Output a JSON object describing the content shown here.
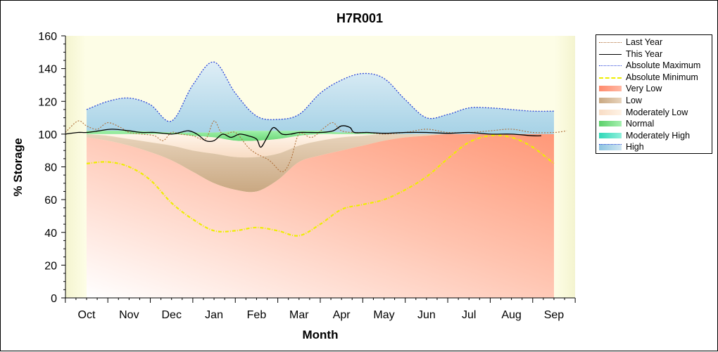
{
  "chart_data": {
    "type": "area",
    "title": "H7R001",
    "xlabel": "Month",
    "ylabel": "% Storage",
    "ylim": [
      0,
      160
    ],
    "yticks": [
      0,
      20,
      40,
      60,
      80,
      100,
      120,
      140,
      160
    ],
    "categories": [
      "Oct",
      "Nov",
      "Dec",
      "Jan",
      "Feb",
      "Mar",
      "Apr",
      "May",
      "Jun",
      "Jul",
      "Aug",
      "Sep"
    ],
    "legend_position": "right",
    "series": [
      {
        "name": "Last Year",
        "style": "dotted",
        "color": "#b0703a",
        "values": [
          [
            -0.5,
            101
          ],
          [
            -0.2,
            108
          ],
          [
            0,
            105
          ],
          [
            0.25,
            103
          ],
          [
            0.5,
            107
          ],
          [
            0.8,
            104
          ],
          [
            1,
            101
          ],
          [
            1.3,
            100
          ],
          [
            1.6,
            99
          ],
          [
            1.8,
            96
          ],
          [
            2,
            101
          ],
          [
            2.2,
            100
          ],
          [
            2.5,
            99
          ],
          [
            2.8,
            97
          ],
          [
            3,
            108
          ],
          [
            3.2,
            100
          ],
          [
            3.5,
            101
          ],
          [
            3.8,
            92
          ],
          [
            4,
            88
          ],
          [
            4.3,
            84
          ],
          [
            4.6,
            77
          ],
          [
            4.8,
            84
          ],
          [
            5,
            100
          ],
          [
            5.3,
            98
          ],
          [
            5.6,
            104
          ],
          [
            5.8,
            107
          ],
          [
            6,
            102
          ],
          [
            6.3,
            101
          ],
          [
            6.6,
            101
          ],
          [
            7,
            100
          ],
          [
            7.5,
            101
          ],
          [
            8,
            103
          ],
          [
            8.5,
            101
          ],
          [
            9,
            101
          ],
          [
            9.5,
            102
          ],
          [
            10,
            103
          ],
          [
            10.5,
            101
          ],
          [
            11,
            101
          ],
          [
            11.3,
            102
          ]
        ]
      },
      {
        "name": "This Year",
        "style": "solid",
        "color": "#000000",
        "values": [
          [
            -0.5,
            100
          ],
          [
            -0.2,
            101
          ],
          [
            0,
            101
          ],
          [
            0.3,
            102
          ],
          [
            0.6,
            103
          ],
          [
            1,
            102
          ],
          [
            1.3,
            101
          ],
          [
            1.6,
            101
          ],
          [
            2,
            100
          ],
          [
            2.2,
            101
          ],
          [
            2.4,
            102
          ],
          [
            2.6,
            100
          ],
          [
            2.8,
            96
          ],
          [
            3,
            96
          ],
          [
            3.2,
            100
          ],
          [
            3.4,
            98
          ],
          [
            3.6,
            100
          ],
          [
            3.8,
            99
          ],
          [
            4,
            97
          ],
          [
            4.1,
            92
          ],
          [
            4.25,
            98
          ],
          [
            4.4,
            104
          ],
          [
            4.6,
            100
          ],
          [
            4.8,
            100
          ],
          [
            5,
            101
          ],
          [
            5.2,
            101
          ],
          [
            5.5,
            101
          ],
          [
            5.8,
            102
          ],
          [
            6,
            105
          ],
          [
            6.2,
            104
          ],
          [
            6.3,
            101
          ],
          [
            6.6,
            101
          ],
          [
            7,
            100.5
          ],
          [
            7.5,
            101
          ],
          [
            8,
            101
          ],
          [
            8.5,
            100.5
          ],
          [
            9,
            101
          ],
          [
            9.5,
            100
          ],
          [
            10,
            100
          ],
          [
            10.5,
            99
          ],
          [
            10.7,
            99
          ]
        ]
      },
      {
        "name": "Absolute Maximum",
        "style": "dash-dot",
        "color": "#2b45d8",
        "values": [
          [
            0,
            115
          ],
          [
            0.5,
            120
          ],
          [
            1,
            122
          ],
          [
            1.5,
            118
          ],
          [
            2,
            108
          ],
          [
            2.5,
            130
          ],
          [
            3,
            144
          ],
          [
            3.5,
            125
          ],
          [
            4,
            111
          ],
          [
            4.5,
            109
          ],
          [
            5,
            112
          ],
          [
            5.5,
            125
          ],
          [
            6,
            133
          ],
          [
            6.5,
            137
          ],
          [
            7,
            134
          ],
          [
            7.5,
            121
          ],
          [
            8,
            110
          ],
          [
            8.5,
            112
          ],
          [
            9,
            116
          ],
          [
            9.5,
            116
          ],
          [
            10,
            115
          ],
          [
            10.5,
            114
          ],
          [
            11,
            114
          ]
        ]
      },
      {
        "name": "Absolute Minimum",
        "style": "dash-dot",
        "color": "#eeee00",
        "values": [
          [
            0,
            82
          ],
          [
            0.5,
            83
          ],
          [
            1,
            80
          ],
          [
            1.5,
            72
          ],
          [
            2,
            58
          ],
          [
            2.5,
            48
          ],
          [
            3,
            41
          ],
          [
            3.5,
            41
          ],
          [
            4,
            43
          ],
          [
            4.5,
            41
          ],
          [
            5,
            38
          ],
          [
            5.5,
            45
          ],
          [
            6,
            54
          ],
          [
            6.5,
            57
          ],
          [
            7,
            60
          ],
          [
            7.5,
            66
          ],
          [
            8,
            74
          ],
          [
            8.5,
            85
          ],
          [
            9,
            95
          ],
          [
            9.5,
            99
          ],
          [
            10,
            98
          ],
          [
            10.5,
            92
          ],
          [
            11,
            82
          ]
        ]
      },
      {
        "name": "Very Low",
        "color": "#ff9f80",
        "lower": [
          [
            0,
            0
          ],
          [
            11,
            0
          ]
        ],
        "upper": [
          [
            0,
            98
          ],
          [
            0.5,
            96
          ],
          [
            1,
            93
          ],
          [
            1.5,
            89
          ],
          [
            2,
            84
          ],
          [
            2.5,
            77
          ],
          [
            3,
            70
          ],
          [
            3.5,
            66
          ],
          [
            4,
            65
          ],
          [
            4.5,
            72
          ],
          [
            5,
            83
          ],
          [
            5.5,
            87
          ],
          [
            6,
            90
          ],
          [
            6.5,
            93
          ],
          [
            7,
            96
          ],
          [
            7.5,
            98
          ],
          [
            8,
            99
          ],
          [
            8.5,
            100
          ],
          [
            9,
            100
          ],
          [
            9.5,
            100
          ],
          [
            10,
            100
          ],
          [
            10.5,
            100
          ],
          [
            11,
            100
          ]
        ]
      },
      {
        "name": "Low",
        "color": "#d2b48c",
        "upper": [
          [
            0,
            100
          ],
          [
            0.5,
            99
          ],
          [
            1,
            97
          ],
          [
            1.5,
            95
          ],
          [
            2,
            93
          ],
          [
            2.5,
            90
          ],
          [
            3,
            88
          ],
          [
            3.5,
            86
          ],
          [
            4,
            86
          ],
          [
            4.5,
            88
          ],
          [
            5,
            93
          ],
          [
            5.5,
            96
          ],
          [
            6,
            98
          ],
          [
            6.5,
            99
          ],
          [
            7,
            100
          ],
          [
            7.5,
            100
          ],
          [
            8,
            100
          ],
          [
            8.5,
            100
          ],
          [
            9,
            100
          ],
          [
            9.5,
            100
          ],
          [
            10,
            100
          ],
          [
            10.5,
            100
          ],
          [
            11,
            100
          ]
        ]
      },
      {
        "name": "Moderately Low",
        "color": "#fde6d2",
        "upper": [
          [
            0,
            100
          ],
          [
            1,
            100
          ],
          [
            2,
            100
          ],
          [
            2.5,
            99
          ],
          [
            3,
            98
          ],
          [
            3.5,
            96
          ],
          [
            4,
            96
          ],
          [
            4.5,
            97
          ],
          [
            5,
            99
          ],
          [
            5.5,
            100
          ],
          [
            6,
            100
          ],
          [
            7,
            100
          ],
          [
            8,
            100
          ],
          [
            9,
            100
          ],
          [
            10,
            100
          ],
          [
            11,
            100
          ]
        ]
      },
      {
        "name": "Normal",
        "color": "#7ee08a",
        "upper": [
          [
            0,
            102
          ],
          [
            1,
            102
          ],
          [
            2,
            101
          ],
          [
            2.5,
            101
          ],
          [
            3,
            101
          ],
          [
            3.5,
            102
          ],
          [
            4,
            102
          ],
          [
            4.5,
            102
          ],
          [
            5,
            102
          ],
          [
            5.5,
            102
          ],
          [
            6,
            101
          ],
          [
            6.5,
            101
          ],
          [
            7,
            100
          ],
          [
            8,
            100
          ],
          [
            9,
            100
          ],
          [
            10,
            100
          ],
          [
            11,
            100
          ]
        ]
      },
      {
        "name": "Moderately High",
        "color": "#40e0c0",
        "upper": [
          [
            0,
            102
          ],
          [
            1,
            102
          ],
          [
            2,
            101
          ],
          [
            2.5,
            101
          ],
          [
            3,
            101
          ],
          [
            3.5,
            102
          ],
          [
            4,
            102
          ],
          [
            4.5,
            102
          ],
          [
            5,
            102
          ],
          [
            5.5,
            102
          ],
          [
            6,
            101
          ],
          [
            6.5,
            101
          ],
          [
            7,
            100
          ],
          [
            8,
            100
          ],
          [
            9,
            100
          ],
          [
            10,
            100
          ],
          [
            11,
            100
          ]
        ]
      },
      {
        "name": "High",
        "color": "#a8d4e8",
        "upper": [
          [
            0,
            115
          ],
          [
            0.5,
            120
          ],
          [
            1,
            122
          ],
          [
            1.5,
            118
          ],
          [
            2,
            108
          ],
          [
            2.5,
            130
          ],
          [
            3,
            144
          ],
          [
            3.5,
            125
          ],
          [
            4,
            111
          ],
          [
            4.5,
            109
          ],
          [
            5,
            112
          ],
          [
            5.5,
            125
          ],
          [
            6,
            133
          ],
          [
            6.5,
            137
          ],
          [
            7,
            134
          ],
          [
            7.5,
            121
          ],
          [
            8,
            110
          ],
          [
            8.5,
            112
          ],
          [
            9,
            116
          ],
          [
            9.5,
            116
          ],
          [
            10,
            115
          ],
          [
            10.5,
            114
          ],
          [
            11,
            114
          ]
        ]
      }
    ]
  },
  "colors": {
    "plot_background": "#fdfde6",
    "plot_background_edge": "#f4f4cf"
  }
}
